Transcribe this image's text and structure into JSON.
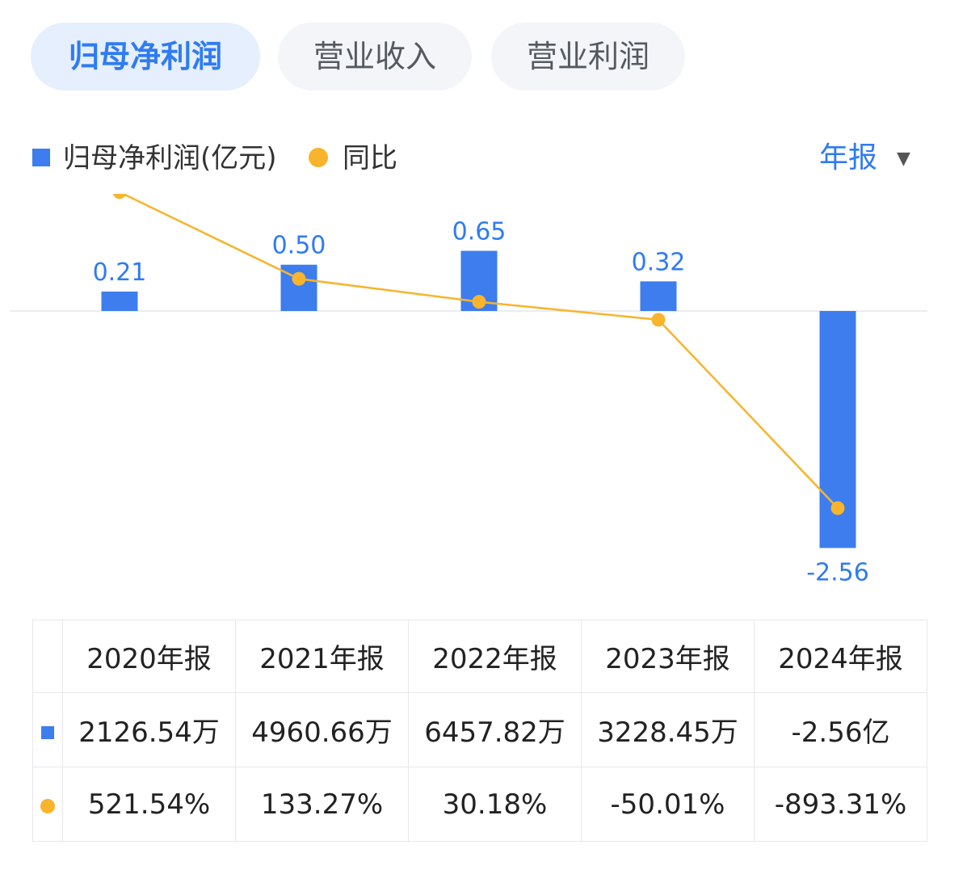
{
  "tabs": [
    {
      "label": "归母净利润",
      "active": true
    },
    {
      "label": "营业收入",
      "active": false
    },
    {
      "label": "营业利润",
      "active": false
    }
  ],
  "legend": {
    "bar_label": "归母净利润(亿元)",
    "line_label": "同比"
  },
  "period_selector": {
    "label": "年报",
    "caret": "▼"
  },
  "colors": {
    "bar": "#3d7ded",
    "line": "#f8b42c",
    "accent": "#2f7bf2",
    "positive": "#e8453c",
    "negative": "#1fa06b"
  },
  "chart_data": {
    "type": "bar",
    "categories": [
      "2020年报",
      "2021年报",
      "2022年报",
      "2023年报",
      "2024年报"
    ],
    "series": [
      {
        "name": "归母净利润(亿元)",
        "type": "bar",
        "values": [
          0.21,
          0.5,
          0.65,
          0.32,
          -2.56
        ],
        "labels": [
          "0.21",
          "0.50",
          "0.65",
          "0.32",
          "-2.56"
        ]
      },
      {
        "name": "同比",
        "type": "line",
        "values": [
          521.54,
          133.27,
          30.18,
          -50.01,
          -893.31
        ]
      }
    ]
  },
  "table": {
    "headers": [
      "2020年报",
      "2021年报",
      "2022年报",
      "2023年报",
      "2024年报"
    ],
    "profit_row": [
      "2126.54万",
      "4960.66万",
      "6457.82万",
      "3228.45万",
      "-2.56亿"
    ],
    "yoy_row": [
      {
        "text": "521.54%",
        "sign": "pos"
      },
      {
        "text": "133.27%",
        "sign": "pos"
      },
      {
        "text": "30.18%",
        "sign": "pos"
      },
      {
        "text": "-50.01%",
        "sign": "neg"
      },
      {
        "text": "-893.31%",
        "sign": "neg"
      }
    ]
  }
}
